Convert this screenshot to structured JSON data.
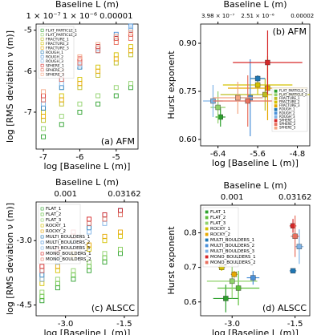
{
  "chart_data": [
    {
      "type": "scatter",
      "top_label": "Baseline L (m)",
      "xlabel": "log [Baseline L (m)]",
      "ylabel": "log [RMS deviation ν (m)]",
      "panel_label": "(a) AFM",
      "legend": "upper left",
      "xlim": [
        -7.2,
        -4.4
      ],
      "ylim": [
        -7.9,
        -4.85
      ],
      "xticks": [
        -7,
        -6,
        -5
      ],
      "yticks": [
        -7,
        -6,
        -5
      ],
      "top_ticks": [
        {
          "value": -7,
          "label": "1 × 10⁻⁷"
        },
        {
          "value": -6,
          "label": "1 × 10⁻⁶"
        },
        {
          "value": -5,
          "label": "0.00001"
        }
      ],
      "series": [
        {
          "name": "FLAT_PARTICLE_1",
          "color": "#2ca02c",
          "x": [
            -7,
            -6.5,
            -6,
            -5.5,
            -5,
            -4.6
          ],
          "values": [
            -7.6,
            -7.3,
            -7.0,
            -6.8,
            -6.6,
            -6.4
          ]
        },
        {
          "name": "FLAT_PARTICLE_2",
          "color": "#8fd16a",
          "x": [
            -7,
            -6.5,
            -6,
            -5.5,
            -5,
            -4.6
          ],
          "values": [
            -7.4,
            -7.1,
            -6.8,
            -6.6,
            -6.4,
            -6.3
          ]
        },
        {
          "name": "FRACTURE_1",
          "color": "#bcbd22",
          "x": [
            -7,
            -6.5,
            -6,
            -5.5,
            -5,
            -4.6
          ],
          "values": [
            -7.2,
            -6.8,
            -6.4,
            -6.1,
            -5.8,
            -5.6
          ]
        },
        {
          "name": "FRACTURE_2",
          "color": "#d4c200",
          "x": [
            -7,
            -6.5,
            -6,
            -5.5,
            -5,
            -4.6
          ],
          "values": [
            -7.0,
            -6.6,
            -6.2,
            -5.9,
            -5.6,
            -5.4
          ]
        },
        {
          "name": "FRACTURE_3",
          "color": "#e6a800",
          "x": [
            -7,
            -6.5,
            -6,
            -5.5,
            -5,
            -4.6
          ],
          "values": [
            -7.1,
            -6.7,
            -6.3,
            -6.0,
            -5.7,
            -5.5
          ]
        },
        {
          "name": "ROUGH_1",
          "color": "#1f77b4",
          "x": [
            -7,
            -6.5,
            -6,
            -5.5,
            -5,
            -4.6
          ],
          "values": [
            -6.9,
            -6.4,
            -5.9,
            -5.5,
            -5.2,
            -5.0
          ]
        },
        {
          "name": "ROUGH_2",
          "color": "#4a90d9",
          "x": [
            -7,
            -6.5,
            -6,
            -5.5,
            -5,
            -4.6
          ],
          "values": [
            -6.7,
            -6.2,
            -5.8,
            -5.4,
            -5.1,
            -4.9
          ]
        },
        {
          "name": "ROUGH_3",
          "color": "#7fb3e6",
          "x": [
            -7,
            -6.5,
            -6,
            -5.5,
            -5,
            -4.6
          ],
          "values": [
            -6.8,
            -6.3,
            -5.85,
            -5.45,
            -5.15,
            -4.95
          ]
        },
        {
          "name": "SPHERE_1",
          "color": "#d62728",
          "x": [
            -7,
            -6.5,
            -6,
            -5.5,
            -5,
            -4.6
          ],
          "values": [
            -6.6,
            -6.1,
            -5.7,
            -5.4,
            -5.2,
            -5.1
          ]
        },
        {
          "name": "SPHERE_2",
          "color": "#e8705f",
          "x": [
            -7,
            -6.5,
            -6,
            -5.5,
            -5,
            -4.6
          ],
          "values": [
            -6.7,
            -6.2,
            -5.8,
            -5.5,
            -5.3,
            -5.2
          ]
        },
        {
          "name": "SPHERE_3",
          "color": "#f4a582",
          "x": [
            -7,
            -6.5,
            -6,
            -5.5,
            -5,
            -4.6
          ],
          "values": [
            -6.5,
            -6.0,
            -5.65,
            -5.35,
            -5.15,
            -5.05
          ]
        }
      ]
    },
    {
      "type": "errorbar",
      "top_label": "Baseline L (m)",
      "xlabel": "log [Baseline L (m)]",
      "ylabel": "Hurst exponent",
      "panel_label": "(b) AFM",
      "legend": "lower right",
      "xlim": [
        -6.75,
        -4.55
      ],
      "ylim": [
        0.58,
        0.96
      ],
      "xticks": [
        -6.4,
        -5.6,
        -4.8
      ],
      "yticks": [
        {
          "value": 0.6,
          "label": "0.60"
        },
        0.75,
        {
          "value": 0.9,
          "label": "0.90"
        }
      ],
      "top_ticks": [
        {
          "value": -6.4,
          "label": "3.98 × 10⁻⁷"
        },
        {
          "value": -5.6,
          "label": "2.51 × 10⁻⁶"
        },
        {
          "value": -4.7,
          "label": "0.00002"
        }
      ],
      "series": [
        {
          "name": "FLAT_PARTICLE_1",
          "color": "#2ca02c",
          "x": [
            -6.35
          ],
          "values": [
            0.67
          ],
          "xerr": [
            0.1
          ],
          "yerr": [
            0.03
          ]
        },
        {
          "name": "FLAT_PARTICLE_2",
          "color": "#8fd16a",
          "x": [
            -6.4
          ],
          "values": [
            0.7
          ],
          "xerr": [
            0.15
          ],
          "yerr": [
            0.05
          ]
        },
        {
          "name": "FRACTURE_1",
          "color": "#bcbd22",
          "x": [
            -5.45
          ],
          "values": [
            0.74
          ],
          "xerr": [
            0.9
          ],
          "yerr": [
            0.05
          ]
        },
        {
          "name": "FRACTURE_2",
          "color": "#d4c200",
          "x": [
            -5.6
          ],
          "values": [
            0.77
          ],
          "xerr": [
            0.7
          ],
          "yerr": [
            0.03
          ]
        },
        {
          "name": "FRACTURE_3",
          "color": "#e6a800",
          "x": [
            -5.4
          ],
          "values": [
            0.76
          ],
          "xerr": [
            0.8
          ],
          "yerr": [
            0.1
          ]
        },
        {
          "name": "ROUGH_1",
          "color": "#1f77b4",
          "x": [
            -5.6
          ],
          "values": [
            0.79
          ],
          "xerr": [
            0.15
          ],
          "yerr": [
            0.01
          ]
        },
        {
          "name": "ROUGH_2",
          "color": "#4a90d9",
          "x": [
            -5.75
          ],
          "values": [
            0.73
          ],
          "xerr": [
            0.25
          ],
          "yerr": [
            0.12
          ]
        },
        {
          "name": "ROUGH_3",
          "color": "#7fb3e6",
          "x": [
            -6.5
          ],
          "values": [
            0.72
          ],
          "xerr": [
            0.2
          ],
          "yerr": [
            0.05
          ]
        },
        {
          "name": "SPHERE_1",
          "color": "#d62728",
          "x": [
            -5.4
          ],
          "values": [
            0.84
          ],
          "xerr": [
            0.7
          ],
          "yerr": [
            0.1
          ]
        },
        {
          "name": "SPHERE_2",
          "color": "#e8705f",
          "x": [
            -5.8
          ],
          "values": [
            0.72
          ],
          "xerr": [
            0.7
          ],
          "yerr": [
            0.08
          ]
        },
        {
          "name": "SPHERE_3",
          "color": "#f4a582",
          "x": [
            -6.0
          ],
          "values": [
            0.73
          ],
          "xerr": [
            0.5
          ],
          "yerr": [
            0.05
          ]
        }
      ]
    },
    {
      "type": "scatter",
      "top_label": "Baseline L (m)",
      "xlabel": "log [Baseline L (m)]",
      "ylabel": "log [RMS deviation ν (m)]",
      "panel_label": "(c) ALSCC",
      "legend": "upper left",
      "xlim": [
        -3.75,
        -1.15
      ],
      "ylim": [
        -4.75,
        -2.1
      ],
      "xticks": [
        {
          "value": -3,
          "label": "-3.0"
        },
        -1.5
      ],
      "yticks": [
        -4.5,
        {
          "value": -3,
          "label": "-3.0"
        }
      ],
      "top_ticks": [
        {
          "value": -3,
          "label": "0.001"
        },
        {
          "value": -1.5,
          "label": "0.03162"
        }
      ],
      "series": [
        {
          "name": "FLAT_1",
          "color": "#2ca02c",
          "x": [
            -3.6,
            -3.2,
            -2.8,
            -2.4,
            -2.0,
            -1.6
          ],
          "values": [
            -4.4,
            -4.1,
            -3.9,
            -3.7,
            -3.5,
            -3.3
          ]
        },
        {
          "name": "FLAT_2",
          "color": "#5cbf3a",
          "x": [
            -3.6,
            -3.2,
            -2.8,
            -2.4,
            -2.0,
            -1.6
          ],
          "values": [
            -4.3,
            -4.0,
            -3.8,
            -3.6,
            -3.4,
            -3.2
          ]
        },
        {
          "name": "FLAT_3",
          "color": "#8fd16a",
          "x": [
            -3.6,
            -3.2,
            -2.8,
            -2.4,
            -2.0,
            -1.6
          ],
          "values": [
            -4.2,
            -3.9,
            -3.7,
            -3.5,
            -3.3,
            -3.2
          ]
        },
        {
          "name": "ROCKY_1",
          "color": "#d4c200",
          "x": [
            -3.6,
            -3.2,
            -2.8,
            -2.4,
            -2.0,
            -1.6
          ],
          "values": [
            -4.0,
            -3.7,
            -3.4,
            -3.2,
            -3.0,
            -2.9
          ]
        },
        {
          "name": "ROCKY_2",
          "color": "#e6a800",
          "x": [
            -3.6,
            -3.2,
            -2.8,
            -2.4,
            -2.0,
            -1.6
          ],
          "values": [
            -3.9,
            -3.6,
            -3.3,
            -3.1,
            -2.9,
            -2.8
          ]
        },
        {
          "name": "MULTI_BOULDERS_1",
          "color": "#1f77b4",
          "x": [
            -3.6,
            -3.2,
            -2.8,
            -2.4,
            -2.0,
            -1.6
          ],
          "values": [
            -3.8,
            -3.4,
            -3.0,
            -2.7,
            -2.5,
            -2.3
          ]
        },
        {
          "name": "MULTI_BOULDERS_2",
          "color": "#4a90d9",
          "x": [
            -3.6,
            -3.2,
            -2.8,
            -2.4,
            -2.0,
            -1.6
          ],
          "values": [
            -3.7,
            -3.3,
            -2.9,
            -2.6,
            -2.4,
            -2.3
          ]
        },
        {
          "name": "MULTI_BOULDERS_3",
          "color": "#7fb3e6",
          "x": [
            -3.6,
            -3.2,
            -2.8,
            -2.4,
            -2.0,
            -1.6
          ],
          "values": [
            -3.9,
            -3.5,
            -3.1,
            -2.8,
            -2.6,
            -2.4
          ]
        },
        {
          "name": "MONO_BOULDERS_1",
          "color": "#d62728",
          "x": [
            -3.6,
            -3.2,
            -2.8,
            -2.4,
            -2.0,
            -1.6
          ],
          "values": [
            -3.6,
            -3.2,
            -2.8,
            -2.5,
            -2.4,
            -2.3
          ]
        },
        {
          "name": "MONO_BOULDERS_2",
          "color": "#e8705f",
          "x": [
            -3.6,
            -3.2,
            -2.8,
            -2.4,
            -2.0,
            -1.6
          ],
          "values": [
            -3.7,
            -3.3,
            -2.9,
            -2.6,
            -2.5,
            -2.4
          ]
        }
      ]
    },
    {
      "type": "errorbar",
      "top_label": "Baseline L (m)",
      "xlabel": "log [Baseline L (m)]",
      "ylabel": "Hurst exponent",
      "panel_label": "(d) ALSCC",
      "legend": "upper left",
      "xlim": [
        -3.75,
        -1.15
      ],
      "ylim": [
        0.56,
        0.88
      ],
      "xticks": [
        {
          "value": -3,
          "label": "-3.0"
        },
        -1.5
      ],
      "yticks": [
        0.6,
        0.7,
        0.8
      ],
      "top_ticks": [
        {
          "value": -3,
          "label": "0.001"
        },
        {
          "value": -1.5,
          "label": "0.03162"
        }
      ],
      "series": [
        {
          "name": "FLAT_1",
          "color": "#2ca02c",
          "x": [
            -3.15
          ],
          "values": [
            0.61
          ],
          "xerr": [
            0.3
          ],
          "yerr": [
            0.04
          ]
        },
        {
          "name": "FLAT_2",
          "color": "#5cbf3a",
          "x": [
            -2.85
          ],
          "values": [
            0.64
          ],
          "xerr": [
            0.5
          ],
          "yerr": [
            0.05
          ]
        },
        {
          "name": "FLAT_3",
          "color": "#8fd16a",
          "x": [
            -3.0
          ],
          "values": [
            0.66
          ],
          "xerr": [
            0.6
          ],
          "yerr": [
            0.05
          ]
        },
        {
          "name": "ROCKY_1",
          "color": "#d4c200",
          "x": [
            -3.25
          ],
          "values": [
            0.7
          ],
          "xerr": [
            0.08
          ],
          "yerr": [
            0.01
          ]
        },
        {
          "name": "ROCKY_2",
          "color": "#e6a800",
          "x": [
            -2.95
          ],
          "values": [
            0.68
          ],
          "xerr": [
            0.08
          ],
          "yerr": [
            0.01
          ]
        },
        {
          "name": "MULTI_BOULDERS_1",
          "color": "#1f77b4",
          "x": [
            -1.55
          ],
          "values": [
            0.69
          ],
          "xerr": [
            0.08
          ],
          "yerr": [
            0.005
          ]
        },
        {
          "name": "MULTI_BOULDERS_2",
          "color": "#4a90d9",
          "x": [
            -2.5
          ],
          "values": [
            0.67
          ],
          "xerr": [
            0.15
          ],
          "yerr": [
            0.02
          ]
        },
        {
          "name": "MULTI_BOULDERS_3",
          "color": "#7fb3e6",
          "x": [
            -1.4
          ],
          "values": [
            0.76
          ],
          "xerr": [
            0.1
          ],
          "yerr": [
            0.05
          ]
        },
        {
          "name": "MONO_BOULDERS_1",
          "color": "#d62728",
          "x": [
            -1.55
          ],
          "values": [
            0.82
          ],
          "xerr": [
            0.08
          ],
          "yerr": [
            0.02
          ]
        },
        {
          "name": "MONO_BOULDERS_2",
          "color": "#e8705f",
          "x": [
            -1.5
          ],
          "values": [
            0.79
          ],
          "xerr": [
            0.1
          ],
          "yerr": [
            0.06
          ]
        }
      ]
    }
  ]
}
